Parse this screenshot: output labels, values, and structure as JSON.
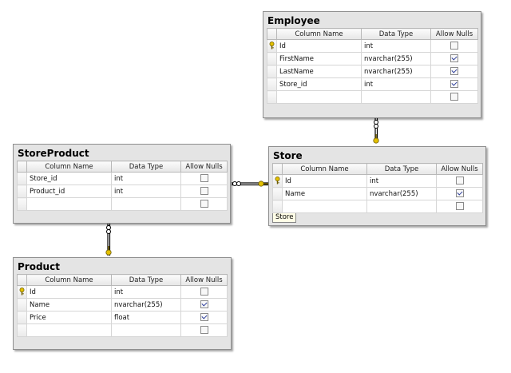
{
  "column_headers": {
    "name": "Column Name",
    "type": "Data Type",
    "nulls": "Allow Nulls"
  },
  "tables": {
    "employee": {
      "title": "Employee",
      "rows": [
        {
          "name": "Id",
          "type": "int",
          "nulls": false,
          "key": true
        },
        {
          "name": "FirstName",
          "type": "nvarchar(255)",
          "nulls": true,
          "key": false
        },
        {
          "name": "LastName",
          "type": "nvarchar(255)",
          "nulls": true,
          "key": false
        },
        {
          "name": "Store_id",
          "type": "int",
          "nulls": true,
          "key": false
        }
      ]
    },
    "storeproduct": {
      "title": "StoreProduct",
      "rows": [
        {
          "name": "Store_id",
          "type": "int",
          "nulls": false,
          "key": false
        },
        {
          "name": "Product_id",
          "type": "int",
          "nulls": false,
          "key": false
        }
      ]
    },
    "store": {
      "title": "Store",
      "tag": "Store",
      "rows": [
        {
          "name": "Id",
          "type": "int",
          "nulls": false,
          "key": true
        },
        {
          "name": "Name",
          "type": "nvarchar(255)",
          "nulls": true,
          "key": false
        }
      ]
    },
    "product": {
      "title": "Product",
      "rows": [
        {
          "name": "Id",
          "type": "int",
          "nulls": false,
          "key": true
        },
        {
          "name": "Name",
          "type": "nvarchar(255)",
          "nulls": true,
          "key": false
        },
        {
          "name": "Price",
          "type": "float",
          "nulls": true,
          "key": false
        }
      ]
    }
  },
  "colors": {
    "connector": "#000000",
    "key": "#d7b400"
  }
}
